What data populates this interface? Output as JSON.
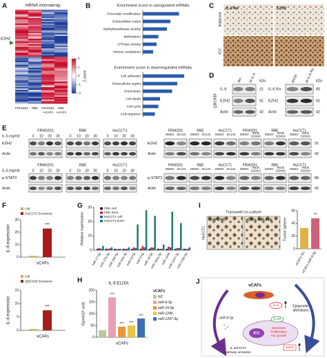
{
  "A": {
    "label": "A",
    "title": "mRNA microarray",
    "gene": "EZH2",
    "columns": [
      [
        "FRH0201"
      ],
      [
        "RBE"
      ],
      [
        "FRH0201",
        "+vCAFs"
      ],
      [
        "RBE",
        "+vCAFs"
      ]
    ],
    "zscore_label": "Z-score",
    "zscore_ticks": [
      2,
      1,
      0,
      -1,
      -2
    ]
  },
  "B": {
    "label": "B",
    "up": {
      "type": "bar",
      "title": "Enrichment score in upregulated mRNAs",
      "color": "#2a5caa",
      "categories": [
        "Chromatin modification",
        "Extracellular matrix",
        "Methyltransferase activity",
        "Methylation",
        "GTPase activity",
        "Histone acetylation"
      ],
      "values": [
        2.1,
        1.6,
        1.4,
        0.9,
        0.8,
        0.6
      ]
    },
    "down": {
      "type": "bar",
      "title": "Enrichment score in downregulated mRNAs",
      "color": "#2a5caa",
      "categories": [
        "Cell adhesion",
        "Extracellular region",
        "Chemokine",
        "Cell death",
        "Cell cycle",
        "Cell migration"
      ],
      "values": [
        2.4,
        2.0,
        1.7,
        1.0,
        0.9,
        0.7
      ]
    }
  },
  "C": {
    "label": "C",
    "columns": [
      "IL-6 Rα",
      "EZH2"
    ],
    "rows": [
      "Adjacent",
      "ICC"
    ]
  },
  "D": {
    "label": "D",
    "cell_line": "QBC939",
    "kda_label": "kDa",
    "left": {
      "lanes": [
        "Vec",
        "oe IL-6"
      ],
      "proteins": [
        "IL-6",
        "EZH2",
        "Actin"
      ],
      "kda": [
        21,
        91,
        42
      ]
    },
    "right": {
      "lanes": [
        "shCtrl",
        "sh IL-6 Ra"
      ],
      "proteins": [
        "IL-6 Ra",
        "EZH2",
        "Actin"
      ],
      "kda": [
        80,
        91,
        42
      ]
    }
  },
  "E": {
    "label": "E",
    "dose_label": "IL-6 (ng/ml)",
    "doses": [
      0,
      10,
      20,
      30
    ],
    "cells": [
      "FRH0201",
      "RBE",
      "HuCCT1"
    ],
    "top_proteins": [
      "EZH2",
      "Actin"
    ],
    "bottom_proteins": [
      "p-STAT3",
      "Actin"
    ],
    "inhibitor": {
      "top": {
        "groups": [
          {
            "cell": "FRH0201",
            "lanes": [
              [
                "DMSO"
              ],
              [
                "SC144"
              ]
            ]
          },
          {
            "cell": "RBE",
            "lanes": [
              [
                "DMSO"
              ],
              [
                "SC144"
              ]
            ]
          },
          {
            "cell": "HuCCT1",
            "lanes": [
              [
                "DMSO"
              ],
              [
                "SC144"
              ]
            ]
          },
          {
            "cell": "FRH0201",
            "lanes": [
              [
                "DMSO"
              ],
              [
                "INCB",
                "018424"
              ]
            ]
          },
          {
            "cell": "RBE",
            "lanes": [
              [
                "DMSO"
              ],
              [
                "INCB",
                "018424"
              ]
            ]
          },
          {
            "cell": "HuCCT1",
            "lanes": [
              [
                "DMSO"
              ],
              [
                "INCB",
                "018424"
              ]
            ]
          }
        ],
        "proteins": [
          "EZH2",
          "Actin"
        ],
        "kda": [
          91,
          42
        ]
      },
      "bottom": {
        "groups": [
          {
            "cell": "FRH0201",
            "lanes": [
              [
                "DMSO"
              ],
              [
                "SC144"
              ]
            ]
          },
          {
            "cell": "RBE",
            "lanes": [
              [
                "DMSO"
              ],
              [
                "SC144"
              ]
            ]
          },
          {
            "cell": "HuCCT1",
            "lanes": [
              [
                "DMSO"
              ],
              [
                "SC144"
              ]
            ]
          },
          {
            "cell": "FRH0201",
            "lanes": [
              [
                "DMSO"
              ],
              [
                "INCB",
                "018424"
              ]
            ]
          },
          {
            "cell": "RBE",
            "lanes": [
              [
                "DMSO"
              ],
              [
                "INCB",
                "018424"
              ]
            ]
          },
          {
            "cell": "HuCCT1",
            "lanes": [
              [
                "DMSO"
              ],
              [
                "INCB",
                "018424"
              ]
            ]
          }
        ],
        "proteins": [
          "p-STAT3",
          "Actin"
        ],
        "kda": [
          86,
          42
        ]
      }
    }
  },
  "F": {
    "label": "F",
    "charts": [
      {
        "type": "bar",
        "ylabel": "IL-6 expression",
        "xlabel": "vCAFs",
        "ylim": [
          0,
          30
        ],
        "yticks": [
          0,
          10,
          20,
          30
        ],
        "annotation": "***",
        "series": [
          {
            "name": "Ctrl",
            "color": "#c8b45a",
            "values": [
              1
            ]
          },
          {
            "name": "HuCCT1 Exosome",
            "color": "#a81c1c",
            "values": [
              23
            ]
          }
        ]
      },
      {
        "type": "bar",
        "ylabel": "IL-6 expression",
        "xlabel": "vCAFs",
        "ylim": [
          0,
          15
        ],
        "yticks": [
          0,
          5,
          10,
          15
        ],
        "annotation": "***",
        "series": [
          {
            "name": "Ctrl",
            "color": "#c8b45a",
            "values": [
              0.5
            ]
          },
          {
            "name": "QBC939 Exosome",
            "color": "#a81c1c",
            "values": [
              7.5
            ]
          }
        ]
      }
    ]
  },
  "G": {
    "label": "G",
    "type": "bar",
    "ylabel": "Relative expression",
    "ylim": [
      0,
      30
    ],
    "yticks": [
      0,
      10,
      20,
      30
    ],
    "categories": [
      "miR-17-5p",
      "miR-27a-3p",
      "miR-34b-5p",
      "miR-92a-3p",
      "miR-93-5p",
      "miR-9-5p",
      "miR-16-5p",
      "miR-181a-5p",
      "miR-1246",
      "miR-1247-3p",
      "miR-125b-5p"
    ],
    "series": [
      {
        "name": "FRH cell",
        "color": "#222222",
        "values": [
          1,
          1,
          1,
          1,
          1,
          1,
          1,
          1,
          1,
          1,
          1
        ]
      },
      {
        "name": "FRH EXO",
        "color": "#d42a2a",
        "values": [
          1.5,
          1,
          0.8,
          1,
          2,
          3,
          2,
          1,
          2.5,
          1.5,
          1
        ]
      },
      {
        "name": "HuCCT1 cell",
        "color": "#2a4fb0",
        "values": [
          1,
          1.2,
          0.9,
          1,
          1.5,
          2,
          1.8,
          1,
          2,
          1.6,
          1
        ]
      },
      {
        "name": "HuCCT1 EXO",
        "color": "#1a7a6e",
        "values": [
          3,
          2,
          1,
          2,
          18,
          28,
          24,
          4,
          27,
          19,
          2
        ]
      }
    ]
  },
  "H": {
    "label": "H",
    "type": "bar",
    "title": "IL-6 ELISA",
    "ylabel": "Pg/ml/10⁵ cells",
    "xlabel": "vCAFs",
    "legend_title": "vCAFs",
    "ylim": [
      0,
      200
    ],
    "yticks": [
      0,
      50,
      100,
      150,
      200
    ],
    "series": [
      {
        "name": "NC",
        "color": "#b9c99a",
        "values": [
          30
        ]
      },
      {
        "name": "miR-9-5p",
        "color": "#e8a0b4",
        "values": [
          170
        ],
        "annotation": "***"
      },
      {
        "name": "miR-16-5p",
        "color": "#e8963a",
        "values": [
          45
        ],
        "annotation": "***"
      },
      {
        "name": "miR-1246",
        "color": "#e8c44a",
        "values": [
          50
        ],
        "annotation": "***"
      },
      {
        "name": "miR-1247-3p",
        "color": "#3a6fb5",
        "values": [
          80
        ],
        "annotation": "***"
      }
    ]
  },
  "I": {
    "label": "I",
    "title": "Transwell co-culture",
    "cell_line": "HuCCT1",
    "images": [
      "vCAFs NC",
      "vCAFs miR-9-5p"
    ],
    "chart": {
      "type": "bar",
      "ylabel": "Tumor sphere",
      "categories": [
        "vCAFs NC",
        "vCAFs miR-9-5p"
      ],
      "values": [
        33,
        48
      ],
      "colors": [
        "#e0b24a",
        "#d0607a"
      ],
      "ylim": [
        0,
        60
      ],
      "yticks": [
        0,
        20,
        40,
        60
      ],
      "annotation": "**"
    }
  },
  "J": {
    "label": "J",
    "vcafs": "vCAFs",
    "il6": "IL-6",
    "il6r": "IL-6R",
    "mir": "miR-9-5p",
    "icc": "ICC",
    "stemness": [
      "Stemness",
      "Proliferation",
      "ICC growth"
    ],
    "epigenetic": [
      "Epigenetic",
      "alterations"
    ],
    "pathway": [
      "IL-6/STAT3",
      "pathway activation"
    ],
    "ezh2": "EZH2"
  }
}
